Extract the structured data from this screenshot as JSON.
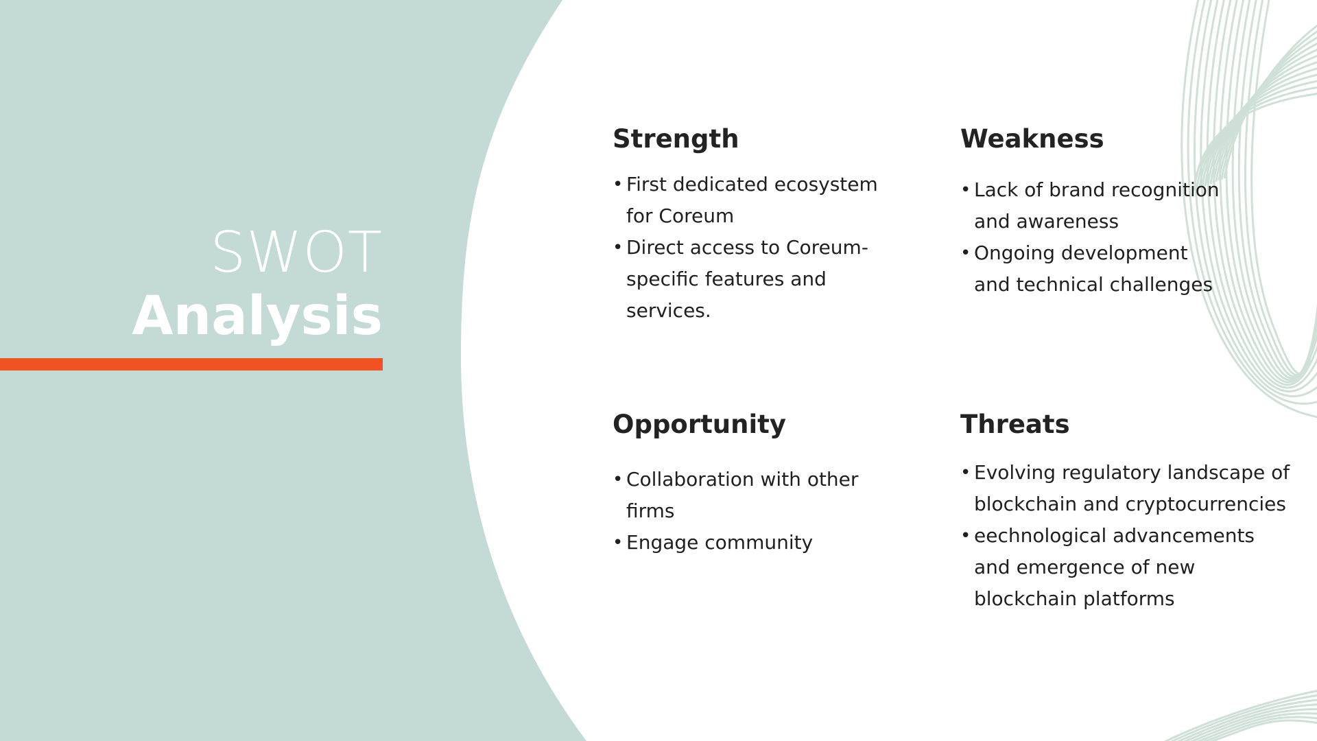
{
  "colors": {
    "left_panel": "#c3dad7",
    "accent_bar": "#f05222",
    "wave_lines": "#cfe0d6",
    "title_text": "#ffffff",
    "body_text": "#1f1f1f"
  },
  "title": {
    "line1": "SWOT",
    "line2": "Analysis"
  },
  "sections": {
    "strength": {
      "heading": "Strength",
      "items": [
        "First dedicated ecosystem for Coreum",
        "Direct access to Coreum-specific features and services."
      ]
    },
    "weakness": {
      "heading": "Weakness",
      "items": [
        "Lack of brand recognition and awareness",
        "Ongoing development and technical challenges"
      ]
    },
    "opportunity": {
      "heading": "Opportunity",
      "items": [
        "Collaboration with other firms",
        "Engage community"
      ]
    },
    "threats": {
      "heading": "Threats",
      "items": [
        "Evolving regulatory landscape of blockchain and cryptocurrencies",
        "eechnological advancements and emergence of new blockchain platforms"
      ]
    }
  },
  "bullet_glyph": "•"
}
